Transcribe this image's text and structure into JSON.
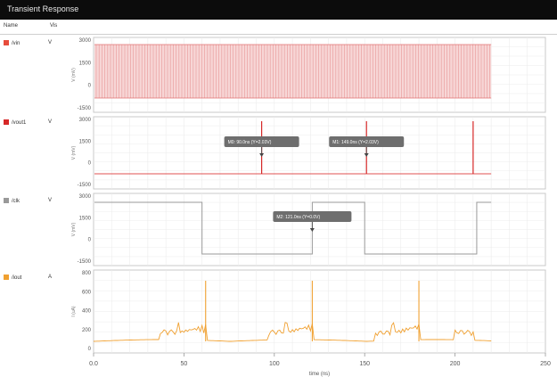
{
  "window": {
    "title": "Transient Response"
  },
  "columns": {
    "name": "Name",
    "vis": "Vis"
  },
  "signals": [
    {
      "name": "/vin",
      "vis": "V",
      "color": "#e74c3c"
    },
    {
      "name": "/vout1",
      "vis": "V",
      "color": "#d62828"
    },
    {
      "name": "/clk",
      "vis": "V",
      "color": "#999999"
    },
    {
      "name": "/iout",
      "vis": "A",
      "color": "#f0a030"
    }
  ],
  "panels": [
    {
      "ylabel": "V (mV)",
      "yticks": [
        "3000",
        "1500",
        "0",
        "-1500"
      ]
    },
    {
      "ylabel": "V (mV)",
      "yticks": [
        "3000",
        "1500",
        "0",
        "-1500"
      ]
    },
    {
      "ylabel": "V (mV)",
      "yticks": [
        "3000",
        "1500",
        "0",
        "-1500"
      ]
    },
    {
      "ylabel": "I (uA)",
      "yticks": [
        "800",
        "600",
        "400",
        "200",
        "0"
      ]
    }
  ],
  "markers": [
    {
      "label": "M0: 90.0ns  (Y=2.03V)"
    },
    {
      "label": "M1: 149.0ns  (Y=2.03V)"
    },
    {
      "label": "M2: 121.0ns  (Y=0.0V)"
    }
  ],
  "xaxis": {
    "ticks": [
      "0.0",
      "50",
      "100",
      "150",
      "200",
      "250"
    ],
    "label": "time (ns)"
  }
}
